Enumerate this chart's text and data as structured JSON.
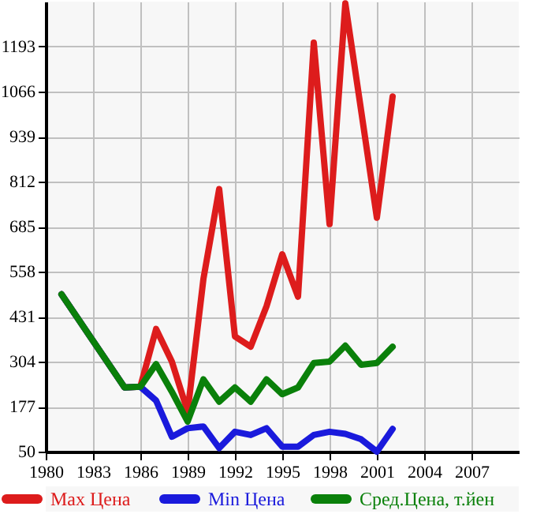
{
  "chart_data": {
    "type": "line",
    "x": [
      1981,
      1985,
      1986,
      1987,
      1988,
      1989,
      1990,
      1991,
      1992,
      1993,
      1994,
      1995,
      1996,
      1997,
      1998,
      1999,
      2000,
      2001,
      2002
    ],
    "series": [
      {
        "name": "Max Цена",
        "color": "#dd1c1c",
        "values": [
          494,
          231,
          233,
          396,
          304,
          163,
          537,
          791,
          375,
          346,
          460,
          607,
          487,
          1204,
          692,
          1315,
          1013,
          710,
          1052
        ]
      },
      {
        "name": "Min Цена",
        "color": "#1a1adc",
        "values": [
          494,
          231,
          233,
          194,
          92,
          116,
          121,
          60,
          106,
          97,
          116,
          64,
          64,
          97,
          106,
          100,
          85,
          50,
          114
        ]
      },
      {
        "name": "Сред.Цена, т.йен",
        "color": "#0a800a",
        "values": [
          494,
          231,
          233,
          297,
          219,
          135,
          254,
          191,
          231,
          191,
          254,
          212,
          231,
          300,
          304,
          349,
          295,
          300,
          346
        ]
      }
    ],
    "xlim": [
      1980,
      2010
    ],
    "xticks": [
      1980,
      1983,
      1986,
      1989,
      1992,
      1995,
      1998,
      2001,
      2004,
      2007
    ],
    "ylim": [
      50,
      1320
    ],
    "yticks": [
      50,
      177,
      304,
      431,
      558,
      685,
      812,
      939,
      1066,
      1193
    ],
    "grid": true,
    "legend": "bottom",
    "marker": "none",
    "line_style": "solid"
  }
}
